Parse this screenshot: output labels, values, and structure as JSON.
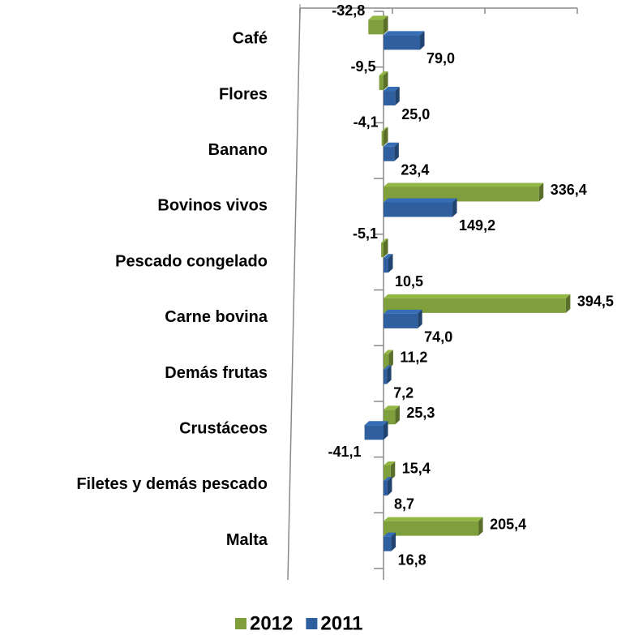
{
  "chart_data": {
    "type": "bar",
    "orientation": "horizontal",
    "categories": [
      "Café",
      "Flores",
      "Banano",
      "Bovinos vivos",
      "Pescado congelado",
      "Carne bovina",
      "Demás frutas",
      "Crustáceos",
      "Filetes y demás pescado",
      "Malta"
    ],
    "series": [
      {
        "name": "2012",
        "color": "#7f9f3c",
        "values": [
          -32.8,
          -9.5,
          -4.1,
          336.4,
          -5.1,
          394.5,
          11.2,
          25.3,
          15.4,
          205.4
        ],
        "value_labels": [
          "-32,8",
          "-9,5",
          "-4,1",
          "336,4",
          "-5,1",
          "394,5",
          "11,2",
          "25,3",
          "15,4",
          "205,4"
        ]
      },
      {
        "name": "2011",
        "color": "#2f5f9f",
        "values": [
          79.0,
          25.0,
          23.4,
          149.2,
          10.5,
          74.0,
          7.2,
          -41.1,
          8.7,
          16.8
        ],
        "value_labels": [
          "79,0",
          "25,0",
          "23,4",
          "149,2",
          "10,5",
          "74,0",
          "7,2",
          "-41,1",
          "8,7",
          "16,8"
        ]
      }
    ],
    "xlim": [
      -200,
      400
    ],
    "xticks": [
      -200,
      0,
      200,
      400
    ],
    "legend": "bottom"
  }
}
